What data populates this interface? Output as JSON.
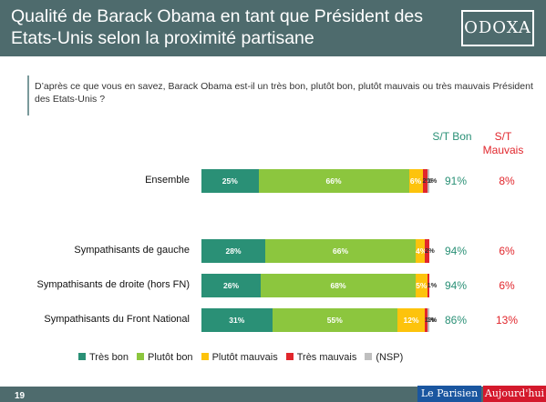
{
  "header": {
    "title": "Qualité de Barack Obama en tant que Président des Etats-Unis selon la proximité partisane",
    "logo": "ODOXA"
  },
  "question": "D’après ce que vous en savez, Barack Obama est-il un très bon, plutôt bon, plutôt mauvais ou très mauvais Président des Etats-Unis ?",
  "columns": {
    "bon": "S/T Bon",
    "mauvais": "S/T Mauvais"
  },
  "colors": {
    "tres_bon": "#2a9076",
    "plutot_bon": "#8cc63e",
    "plutot_mauvais": "#fdc30c",
    "tres_mauvais": "#e1262c",
    "nsp": "#bfbfbf",
    "header_bg": "#4e6b6d"
  },
  "chart_data": {
    "type": "bar",
    "orientation": "horizontal",
    "stacked": true,
    "categories": [
      "Ensemble",
      "Sympathisants de gauche",
      "Sympathisants de droite (hors FN)",
      "Sympathisants du Front National"
    ],
    "series": [
      {
        "name": "Très bon",
        "values": [
          25,
          28,
          26,
          31
        ],
        "labels": [
          "25%",
          "28%",
          "26%",
          "31%"
        ]
      },
      {
        "name": "Plutôt bon",
        "values": [
          66,
          66,
          68,
          55
        ],
        "labels": [
          "66%",
          "66%",
          "68%",
          "55%"
        ]
      },
      {
        "name": "Plutôt mauvais",
        "values": [
          6,
          4,
          5,
          12
        ],
        "labels": [
          "6%",
          "4%",
          "5%",
          "12%"
        ]
      },
      {
        "name": "Très mauvais",
        "values": [
          2,
          2,
          1,
          1
        ],
        "labels": [
          "2%",
          "2%",
          "1%",
          "1%"
        ]
      },
      {
        "name": "(NSP)",
        "values": [
          1,
          0,
          0,
          1
        ],
        "labels": [
          "1%",
          "",
          "",
          "1%"
        ]
      }
    ],
    "st_bon": [
      "91%",
      "94%",
      "94%",
      "86%"
    ],
    "st_mauvais": [
      "8%",
      "6%",
      "6%",
      "13%"
    ],
    "xlim": [
      0,
      100
    ],
    "legend": "bottom"
  },
  "footer": {
    "page": "19",
    "brand1": "Le Parisien",
    "brand2": "Aujourd'hui"
  }
}
